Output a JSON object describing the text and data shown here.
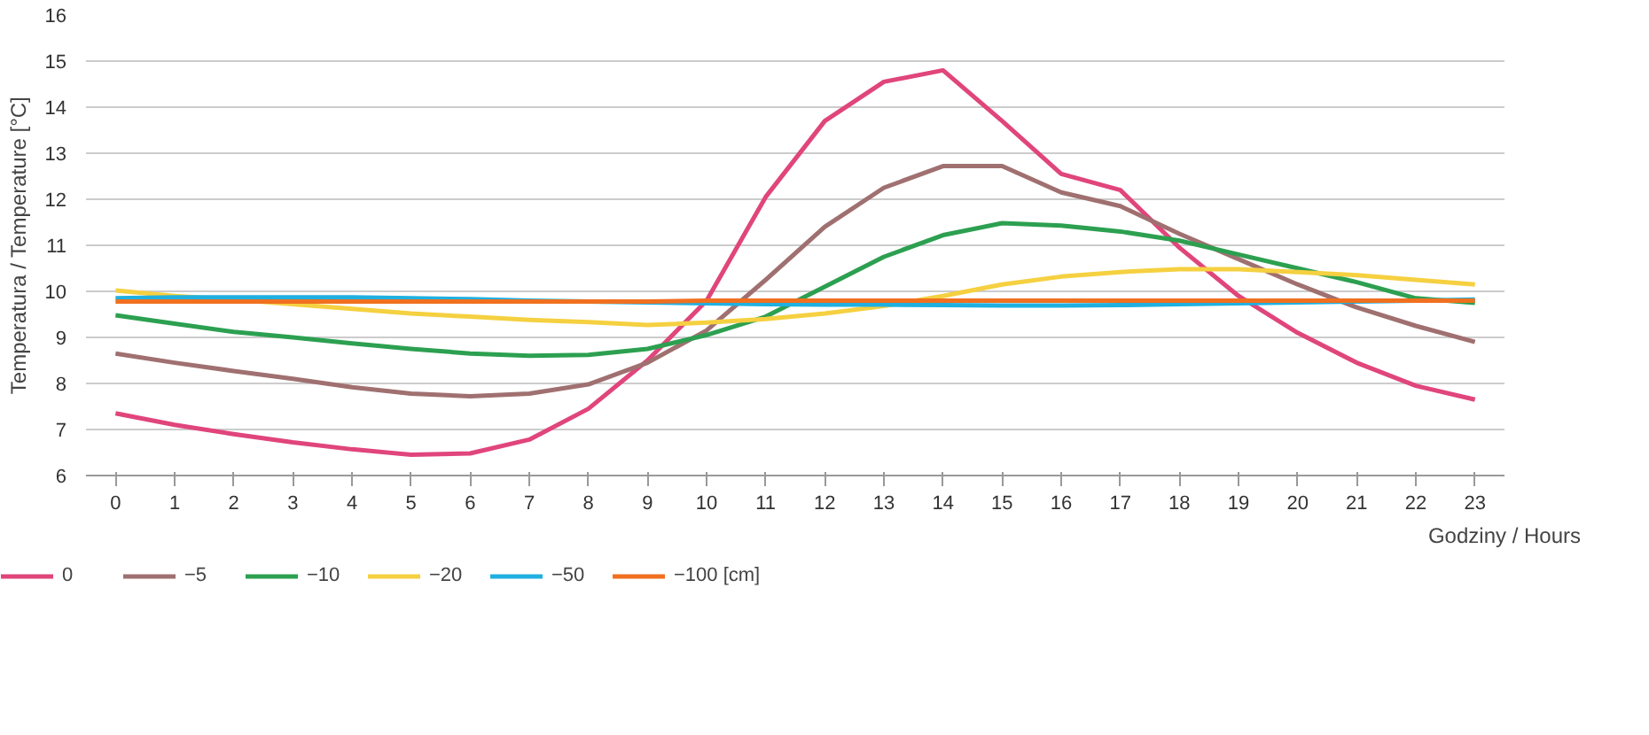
{
  "chart_data": {
    "type": "line",
    "xlabel": "Godziny / Hours",
    "ylabel": "Temperatura / Temperature [°C]",
    "x": [
      0,
      1,
      2,
      3,
      4,
      5,
      6,
      7,
      8,
      9,
      10,
      11,
      12,
      13,
      14,
      15,
      16,
      17,
      18,
      19,
      20,
      21,
      22,
      23
    ],
    "xlim": [
      -0.5,
      23.5
    ],
    "xticks": [
      0,
      1,
      2,
      3,
      4,
      5,
      6,
      7,
      8,
      9,
      10,
      11,
      12,
      13,
      14,
      15,
      16,
      17,
      18,
      19,
      20,
      21,
      22,
      23
    ],
    "ylim": [
      6,
      16
    ],
    "yticks": [
      6,
      7,
      8,
      9,
      10,
      11,
      12,
      13,
      14,
      15,
      16
    ],
    "grid": "y",
    "legend": "bottom",
    "marker": "none",
    "line_style": "solid",
    "series": [
      {
        "name": "0",
        "color": "#e0457b",
        "values": [
          7.35,
          7.1,
          6.9,
          6.72,
          6.57,
          6.45,
          6.48,
          6.78,
          7.45,
          8.5,
          9.8,
          12.05,
          13.7,
          14.55,
          14.8,
          13.7,
          12.55,
          12.2,
          10.95,
          9.9,
          9.1,
          8.45,
          7.95,
          7.65
        ]
      },
      {
        "name": "−5",
        "color": "#a07070",
        "values": [
          8.65,
          8.45,
          8.27,
          8.1,
          7.92,
          7.78,
          7.72,
          7.78,
          7.98,
          8.45,
          9.15,
          10.25,
          11.4,
          12.25,
          12.72,
          12.72,
          12.15,
          11.85,
          11.25,
          10.7,
          10.15,
          9.65,
          9.25,
          8.9
        ]
      },
      {
        "name": "−10",
        "color": "#2ca050",
        "values": [
          9.48,
          9.3,
          9.12,
          9.0,
          8.87,
          8.75,
          8.65,
          8.6,
          8.62,
          8.75,
          9.05,
          9.45,
          10.1,
          10.75,
          11.22,
          11.48,
          11.43,
          11.3,
          11.1,
          10.8,
          10.5,
          10.2,
          9.85,
          9.75
        ]
      },
      {
        "name": "−20",
        "color": "#f5d040",
        "values": [
          10.02,
          9.9,
          9.82,
          9.72,
          9.62,
          9.52,
          9.45,
          9.38,
          9.33,
          9.27,
          9.32,
          9.4,
          9.52,
          9.68,
          9.9,
          10.15,
          10.32,
          10.42,
          10.48,
          10.48,
          10.42,
          10.35,
          10.25,
          10.15
        ]
      },
      {
        "name": "−50",
        "color": "#20b0e0",
        "values": [
          9.85,
          9.87,
          9.87,
          9.87,
          9.87,
          9.85,
          9.83,
          9.8,
          9.78,
          9.76,
          9.74,
          9.72,
          9.71,
          9.71,
          9.7,
          9.69,
          9.69,
          9.7,
          9.72,
          9.74,
          9.76,
          9.78,
          9.8,
          9.82
        ]
      },
      {
        "name": "−100 [cm]",
        "color": "#f07020",
        "values": [
          9.78,
          9.78,
          9.78,
          9.78,
          9.78,
          9.78,
          9.78,
          9.78,
          9.78,
          9.78,
          9.8,
          9.8,
          9.8,
          9.8,
          9.8,
          9.8,
          9.8,
          9.8,
          9.8,
          9.8,
          9.8,
          9.8,
          9.8,
          9.8
        ]
      }
    ]
  }
}
